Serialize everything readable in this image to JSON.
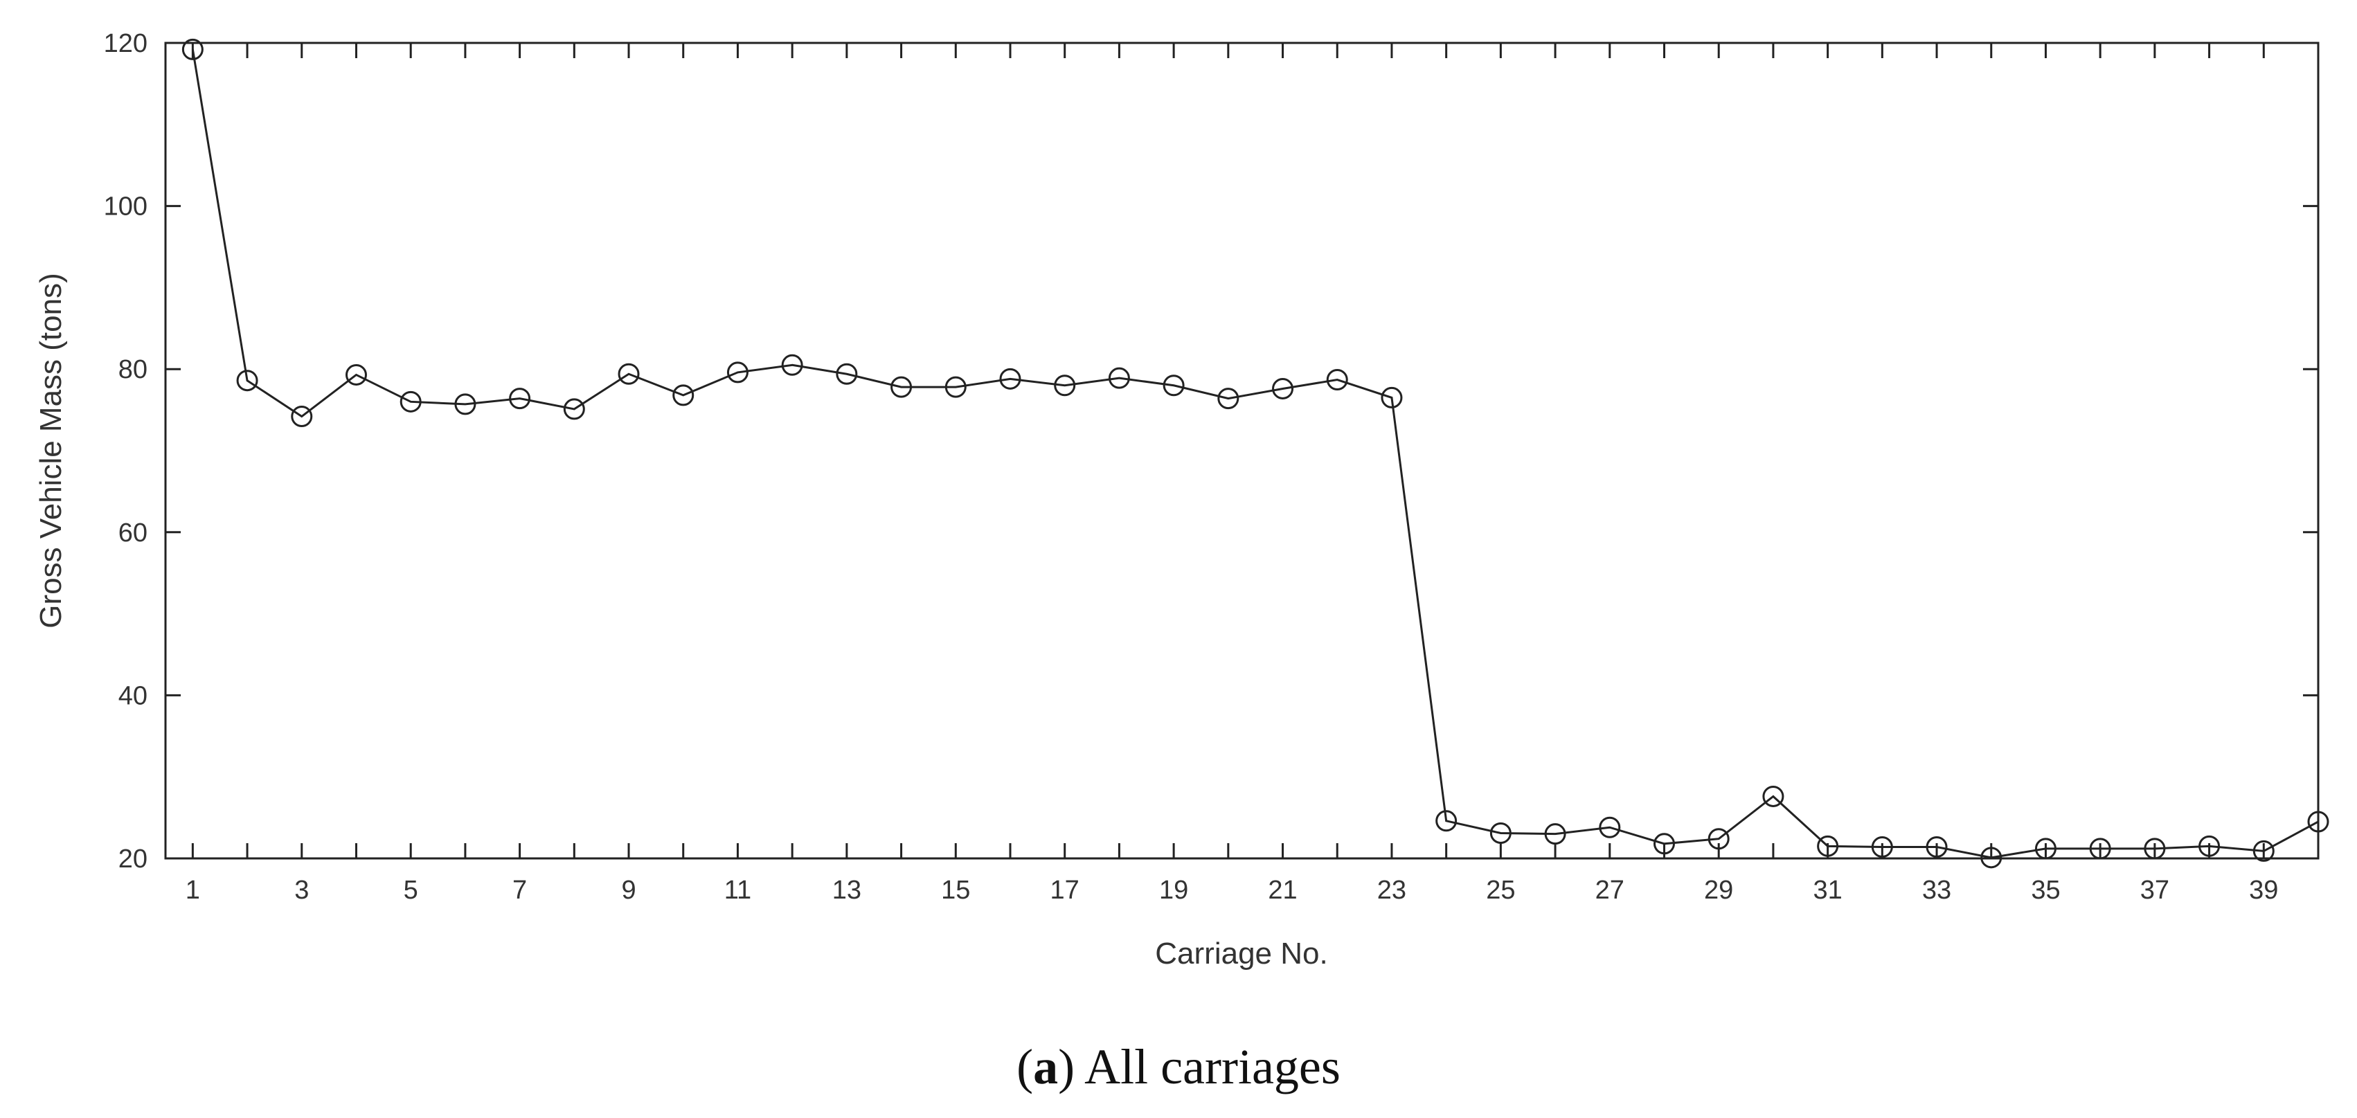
{
  "chart_data": {
    "type": "line",
    "marker": "circle-open",
    "line_color": "#222222",
    "xlabel": "Carriage No.",
    "ylabel": "Gross Vehicle Mass (tons)",
    "xlim": [
      0.5,
      40
    ],
    "ylim": [
      20,
      120
    ],
    "xticks": [
      1,
      3,
      5,
      7,
      9,
      11,
      13,
      15,
      17,
      19,
      21,
      23,
      25,
      27,
      29,
      31,
      33,
      35,
      37,
      39
    ],
    "yticks": [
      20,
      40,
      60,
      80,
      100,
      120
    ],
    "grid": false,
    "x": [
      1,
      2,
      3,
      4,
      5,
      6,
      7,
      8,
      9,
      10,
      11,
      12,
      13,
      14,
      15,
      16,
      17,
      18,
      19,
      20,
      21,
      22,
      23,
      24,
      25,
      26,
      27,
      28,
      29,
      30,
      31,
      32,
      33,
      34,
      35,
      36,
      37,
      38,
      39,
      40
    ],
    "y": [
      119.2,
      78.6,
      74.2,
      79.3,
      76.0,
      75.7,
      76.4,
      75.1,
      79.4,
      76.8,
      79.6,
      80.5,
      79.4,
      77.8,
      77.8,
      78.8,
      78.0,
      78.9,
      78.0,
      76.4,
      77.6,
      78.7,
      76.5,
      24.6,
      23.1,
      23.0,
      23.8,
      21.8,
      22.4,
      27.6,
      21.5,
      21.4,
      21.4,
      20.1,
      21.2,
      21.2,
      21.2,
      21.5,
      20.9,
      24.5
    ]
  },
  "caption": {
    "label": "a",
    "text": "All carriages"
  }
}
